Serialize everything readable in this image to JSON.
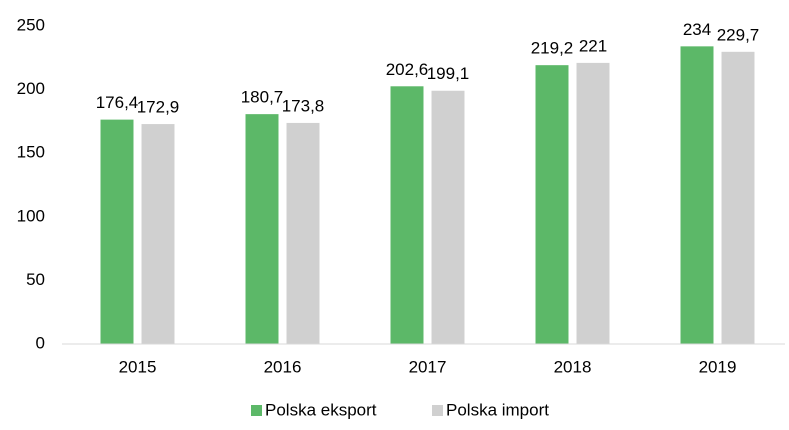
{
  "chart_data": {
    "type": "bar",
    "categories": [
      "2015",
      "2016",
      "2017",
      "2018",
      "2019"
    ],
    "series": [
      {
        "name": "Polska eksport",
        "color": "#5cb868",
        "values": [
          176.4,
          180.7,
          202.6,
          219.2,
          234
        ],
        "value_labels": [
          "176,4",
          "180,7",
          "202,6",
          "219,2",
          "234"
        ]
      },
      {
        "name": "Polska import",
        "color": "#d0d0d0",
        "values": [
          172.9,
          173.8,
          199.1,
          221,
          229.7
        ],
        "value_labels": [
          "172,9",
          "173,8",
          "199,1",
          "221",
          "229,7"
        ]
      }
    ],
    "ylim": [
      0,
      250
    ],
    "yticks": [
      0,
      50,
      100,
      150,
      200,
      250
    ],
    "grid": false,
    "legend": "bottom"
  }
}
